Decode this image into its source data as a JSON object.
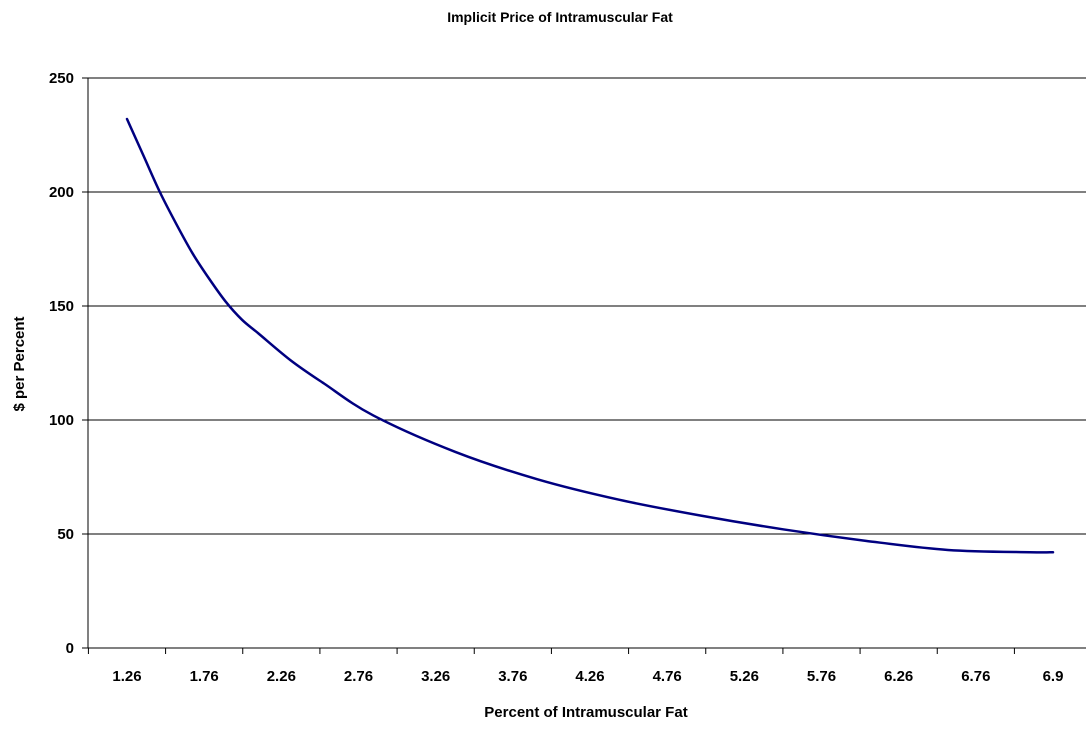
{
  "chart_data": {
    "type": "line",
    "title": "Implicit Price of Intramuscular Fat",
    "xlabel": "Percent of Intramuscular Fat",
    "ylabel": "$ per Percent",
    "x_tick_labels": [
      "1.26",
      "1.76",
      "2.26",
      "2.76",
      "3.26",
      "3.76",
      "4.26",
      "4.76",
      "5.26",
      "5.76",
      "6.26",
      "6.76",
      "6.9"
    ],
    "y_ticks": [
      0,
      50,
      100,
      150,
      200,
      250
    ],
    "ylim": [
      0,
      250
    ],
    "xlim": [
      1.26,
      6.9
    ],
    "grid": "horizontal",
    "legend": "none",
    "series": [
      {
        "color": "#000080",
        "x": [
          1.26,
          1.36,
          1.46,
          1.56,
          1.66,
          1.76,
          1.86,
          1.96,
          2.06,
          2.26,
          2.46,
          2.76,
          3.26,
          3.76,
          4.26,
          4.76,
          5.26,
          5.76,
          6.26,
          6.76,
          6.9
        ],
        "y": [
          232,
          216,
          200,
          186,
          173,
          162,
          152,
          144,
          138,
          126,
          116,
          102,
          86,
          74,
          65,
          58,
          52,
          47,
          43,
          42,
          42
        ]
      }
    ]
  }
}
